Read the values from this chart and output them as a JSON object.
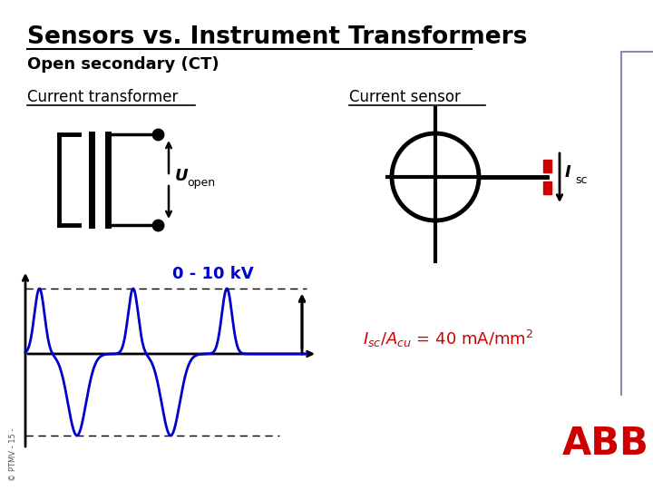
{
  "title": "Sensors vs. Instrument Transformers",
  "subtitle": "Open secondary (CT)",
  "left_label": "Current transformer",
  "right_label": "Current sensor",
  "voltage_label": "0 - 10 kV",
  "watermark": "© PTMV - 15 -",
  "bg_color": "#ffffff",
  "title_color": "#000000",
  "blue_color": "#0000cc",
  "red_color": "#cc0000",
  "line_color": "#000000",
  "border_color": "#8888bb",
  "abb_red": "#cc0000"
}
